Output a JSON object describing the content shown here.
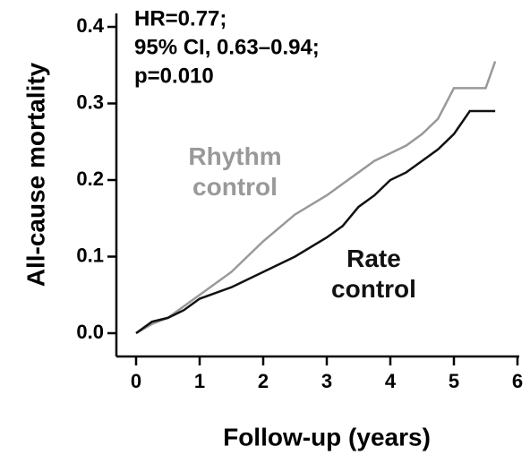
{
  "chart_data": {
    "type": "line",
    "annotations": [
      "HR=0.77;",
      "95% CI, 0.63–0.94;",
      "p=0.010"
    ],
    "xlabel": "Follow-up (years)",
    "ylabel": "All-cause mortality",
    "x": [
      0,
      0.25,
      0.5,
      0.75,
      1,
      1.5,
      2,
      2.5,
      3,
      3.25,
      3.5,
      3.75,
      4,
      4.25,
      4.5,
      4.75,
      5,
      5.25,
      5.5,
      5.65
    ],
    "series": [
      {
        "name": "Rhythm control",
        "color": "#999999",
        "values": [
          0,
          0.012,
          0.02,
          0.035,
          0.05,
          0.08,
          0.12,
          0.155,
          0.18,
          0.195,
          0.21,
          0.225,
          0.235,
          0.245,
          0.26,
          0.28,
          0.32,
          0.32,
          0.32,
          0.355
        ]
      },
      {
        "name": "Rate control",
        "color": "#111111",
        "values": [
          0,
          0.015,
          0.02,
          0.03,
          0.045,
          0.06,
          0.08,
          0.1,
          0.125,
          0.14,
          0.165,
          0.18,
          0.2,
          0.21,
          0.225,
          0.24,
          0.26,
          0.29,
          0.29,
          0.29
        ]
      }
    ],
    "xlim": [
      0,
      6
    ],
    "xticks": [
      0,
      1,
      2,
      3,
      4,
      5,
      6
    ],
    "ylim": [
      0,
      0.4
    ],
    "yticks": [
      {
        "value": 0,
        "label": "0.0"
      },
      0.1,
      0.2,
      0.3,
      0.4
    ]
  }
}
